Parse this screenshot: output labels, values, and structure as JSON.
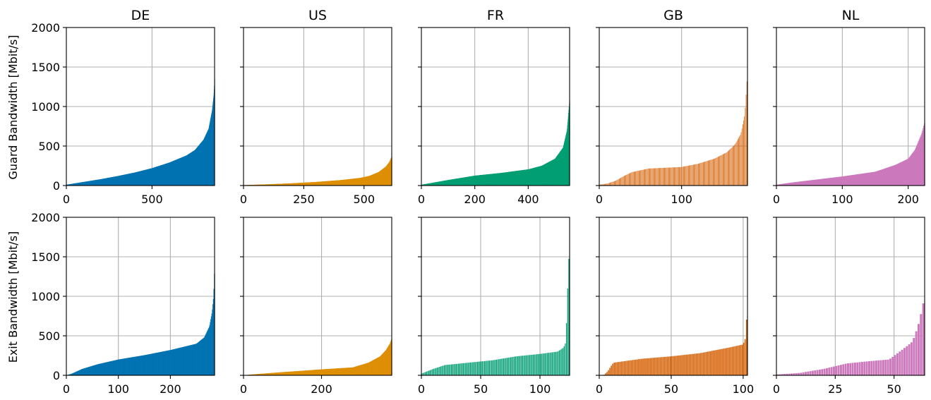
{
  "figure": {
    "row_labels": [
      "Guard Bandwidth [Mbit/s]",
      "Exit Bandwidth [Mbit/s]"
    ],
    "colors": {
      "DE": "#0173b2",
      "US": "#de8f05",
      "FR": "#029e73",
      "GB": "#d55e00",
      "NL": "#cc78bc"
    },
    "grid": true,
    "sharey": true
  },
  "chart_data": [
    {
      "type": "bar",
      "title": "DE",
      "row": "Guard Bandwidth [Mbit/s]",
      "n": 865,
      "xlim": [
        0,
        865
      ],
      "ylim": [
        0,
        2000
      ],
      "xticks": [
        0,
        500
      ],
      "yticks": [
        0,
        500,
        1000,
        1500,
        2000
      ],
      "sorted_profile": {
        "x": [
          0,
          100,
          200,
          300,
          400,
          500,
          600,
          700,
          750,
          800,
          830,
          850,
          860,
          865
        ],
        "y": [
          10,
          45,
          80,
          120,
          165,
          220,
          290,
          380,
          450,
          580,
          720,
          950,
          1150,
          1380
        ]
      }
    },
    {
      "type": "bar",
      "title": "US",
      "row": "Guard Bandwidth [Mbit/s]",
      "n": 615,
      "xlim": [
        0,
        615
      ],
      "ylim": [
        0,
        2000
      ],
      "xticks": [
        0,
        250,
        500
      ],
      "yticks": [
        0,
        500,
        1000,
        1500,
        2000
      ],
      "sorted_profile": {
        "x": [
          0,
          100,
          200,
          300,
          400,
          480,
          520,
          560,
          590,
          605,
          615
        ],
        "y": [
          5,
          15,
          28,
          45,
          68,
          95,
          120,
          170,
          240,
          300,
          370
        ]
      }
    },
    {
      "type": "bar",
      "title": "FR",
      "row": "Guard Bandwidth [Mbit/s]",
      "n": 555,
      "xlim": [
        0,
        555
      ],
      "ylim": [
        0,
        2000
      ],
      "xticks": [
        0,
        200,
        400
      ],
      "yticks": [
        0,
        500,
        1000,
        1500,
        2000
      ],
      "sorted_profile": {
        "x": [
          0,
          50,
          100,
          200,
          300,
          400,
          450,
          500,
          530,
          545,
          550,
          555
        ],
        "y": [
          10,
          40,
          70,
          125,
          160,
          205,
          250,
          340,
          480,
          700,
          900,
          1100
        ]
      }
    },
    {
      "type": "bar",
      "title": "GB",
      "row": "Guard Bandwidth [Mbit/s]",
      "n": 180,
      "xlim": [
        0,
        180
      ],
      "ylim": [
        0,
        2000
      ],
      "xticks": [
        0,
        100
      ],
      "yticks": [
        0,
        500,
        1000,
        1500,
        2000
      ],
      "sorted_profile": {
        "x": [
          0,
          10,
          20,
          30,
          40,
          60,
          80,
          100,
          120,
          140,
          155,
          165,
          172,
          177,
          180
        ],
        "y": [
          10,
          25,
          60,
          120,
          170,
          215,
          225,
          235,
          275,
          340,
          420,
          520,
          650,
          900,
          1400
        ]
      }
    },
    {
      "type": "bar",
      "title": "NL",
      "row": "Guard Bandwidth [Mbit/s]",
      "n": 225,
      "xlim": [
        0,
        225
      ],
      "ylim": [
        0,
        2000
      ],
      "xticks": [
        0,
        100,
        200
      ],
      "yticks": [
        0,
        500,
        1000,
        1500,
        2000
      ],
      "sorted_profile": {
        "x": [
          0,
          20,
          50,
          100,
          150,
          180,
          200,
          210,
          220,
          225
        ],
        "y": [
          10,
          35,
          65,
          115,
          175,
          260,
          340,
          450,
          650,
          800
        ]
      }
    },
    {
      "type": "bar",
      "title": "",
      "row": "Exit Bandwidth [Mbit/s]",
      "n": 285,
      "xlim": [
        0,
        285
      ],
      "ylim": [
        0,
        2000
      ],
      "xticks": [
        0,
        100,
        200
      ],
      "yticks": [
        0,
        500,
        1000,
        1500,
        2000
      ],
      "sorted_profile": {
        "x": [
          0,
          10,
          20,
          30,
          40,
          60,
          100,
          150,
          200,
          250,
          265,
          275,
          280,
          283,
          285
        ],
        "y": [
          0,
          20,
          50,
          80,
          100,
          140,
          200,
          255,
          320,
          400,
          480,
          620,
          800,
          1000,
          1380
        ]
      }
    },
    {
      "type": "bar",
      "title": "",
      "row": "Exit Bandwidth [Mbit/s]",
      "n": 380,
      "xlim": [
        0,
        380
      ],
      "ylim": [
        0,
        2000
      ],
      "xticks": [
        0,
        200
      ],
      "yticks": [
        0,
        500,
        1000,
        1500,
        2000
      ],
      "sorted_profile": {
        "x": [
          0,
          20,
          100,
          200,
          280,
          320,
          350,
          365,
          375,
          380
        ],
        "y": [
          0,
          10,
          40,
          75,
          100,
          160,
          240,
          320,
          400,
          470
        ]
      }
    },
    {
      "type": "bar",
      "title": "",
      "row": "Exit Bandwidth [Mbit/s]",
      "n": 125,
      "xlim": [
        0,
        125
      ],
      "ylim": [
        0,
        2000
      ],
      "xticks": [
        0,
        50,
        100
      ],
      "yticks": [
        0,
        500,
        1000,
        1500,
        2000
      ],
      "sorted_profile": {
        "x": [
          0,
          5,
          10,
          20,
          40,
          60,
          80,
          100,
          115,
          120,
          122,
          123,
          124,
          125
        ],
        "y": [
          20,
          50,
          80,
          130,
          160,
          190,
          240,
          270,
          300,
          350,
          420,
          900,
          1300,
          1650
        ]
      }
    },
    {
      "type": "bar",
      "title": "",
      "row": "Exit Bandwidth [Mbit/s]",
      "n": 103,
      "xlim": [
        0,
        103
      ],
      "ylim": [
        0,
        2000
      ],
      "xticks": [
        0,
        50,
        100
      ],
      "yticks": [
        0,
        500,
        1000,
        1500,
        2000
      ],
      "sorted_profile": {
        "x": [
          0,
          3,
          6,
          8,
          10,
          30,
          50,
          70,
          90,
          100,
          102,
          103
        ],
        "y": [
          0,
          0,
          50,
          110,
          160,
          210,
          240,
          280,
          350,
          390,
          480,
          930
        ]
      }
    },
    {
      "type": "bar",
      "title": "",
      "row": "Exit Bandwidth [Mbit/s]",
      "n": 63,
      "xlim": [
        0,
        63
      ],
      "ylim": [
        0,
        2000
      ],
      "xticks": [
        0,
        25,
        50
      ],
      "yticks": [
        0,
        500,
        1000,
        1500,
        2000
      ],
      "sorted_profile": {
        "x": [
          0,
          10,
          20,
          30,
          40,
          48,
          52,
          56,
          58,
          60,
          61,
          62,
          63
        ],
        "y": [
          10,
          30,
          80,
          150,
          180,
          200,
          290,
          380,
          430,
          600,
          700,
          850,
          970
        ]
      }
    }
  ]
}
